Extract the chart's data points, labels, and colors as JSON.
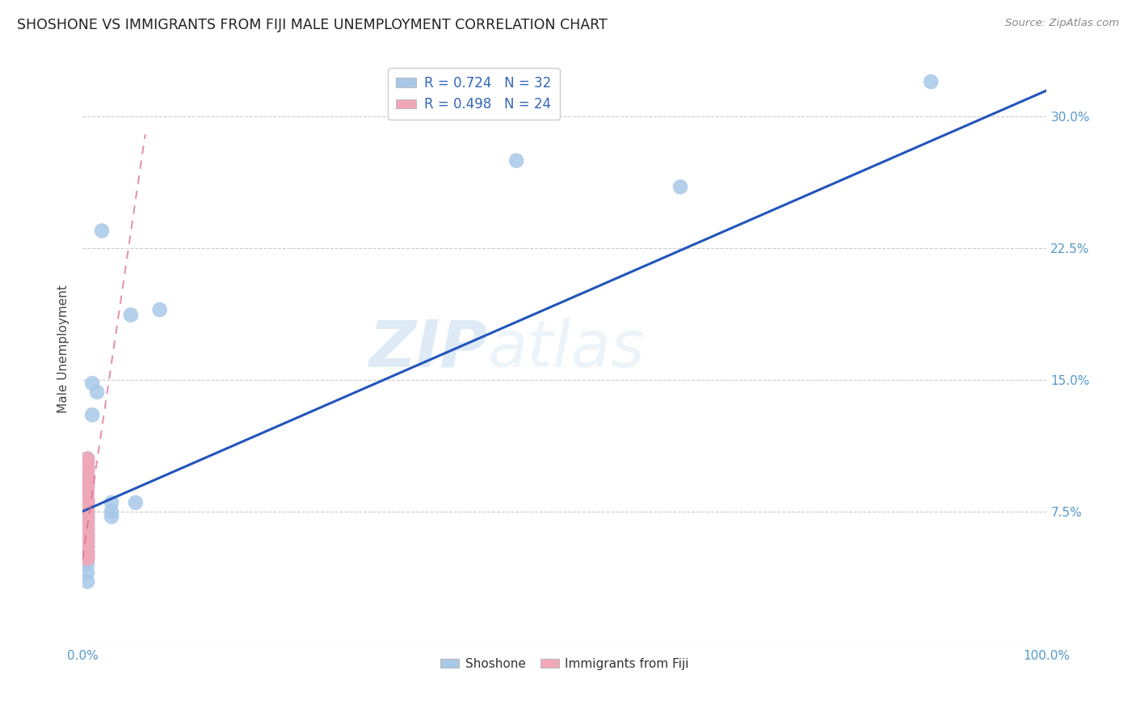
{
  "title": "SHOSHONE VS IMMIGRANTS FROM FIJI MALE UNEMPLOYMENT CORRELATION CHART",
  "source": "Source: ZipAtlas.com",
  "ylabel": "Male Unemployment",
  "y_tick_labels": [
    "7.5%",
    "15.0%",
    "22.5%",
    "30.0%"
  ],
  "xlim": [
    0.0,
    1.0
  ],
  "ylim": [
    0.0,
    0.335
  ],
  "yticks": [
    0.075,
    0.15,
    0.225,
    0.3
  ],
  "xticks": [
    0.0,
    1.0
  ],
  "x_tick_labels": [
    "0.0%",
    "100.0%"
  ],
  "legend_R1": "R = 0.724",
  "legend_N1": "N = 32",
  "legend_R2": "R = 0.498",
  "legend_N2": "N = 24",
  "color_shoshone": "#a8c8e8",
  "color_fiji": "#f0a8b8",
  "line_color_shoshone": "#2255bb",
  "line_color_fiji": "#dd7090",
  "watermark_zip": "ZIP",
  "watermark_atlas": "atlas",
  "background_color": "#ffffff",
  "shoshone_x": [
    0.005,
    0.005,
    0.005,
    0.005,
    0.005,
    0.005,
    0.005,
    0.005,
    0.005,
    0.005,
    0.005,
    0.005,
    0.005,
    0.005,
    0.005,
    0.01,
    0.01,
    0.015,
    0.02,
    0.03,
    0.03,
    0.03,
    0.05,
    0.055,
    0.08,
    0.45,
    0.62,
    0.88,
    0.005,
    0.005,
    0.005,
    0.005
  ],
  "shoshone_y": [
    0.08,
    0.08,
    0.075,
    0.072,
    0.068,
    0.065,
    0.062,
    0.058,
    0.055,
    0.052,
    0.05,
    0.048,
    0.045,
    0.04,
    0.035,
    0.148,
    0.13,
    0.143,
    0.235,
    0.08,
    0.075,
    0.072,
    0.187,
    0.08,
    0.19,
    0.275,
    0.26,
    0.32,
    0.105,
    0.1,
    0.095,
    0.09
  ],
  "fiji_x": [
    0.005,
    0.005,
    0.005,
    0.005,
    0.005,
    0.005,
    0.005,
    0.005,
    0.005,
    0.005,
    0.005,
    0.005,
    0.005,
    0.005,
    0.005,
    0.005,
    0.005,
    0.005,
    0.005,
    0.005,
    0.005,
    0.005,
    0.005,
    0.005
  ],
  "fiji_y": [
    0.105,
    0.103,
    0.1,
    0.098,
    0.095,
    0.092,
    0.09,
    0.088,
    0.085,
    0.082,
    0.08,
    0.078,
    0.075,
    0.072,
    0.07,
    0.068,
    0.065,
    0.062,
    0.06,
    0.058,
    0.055,
    0.052,
    0.05,
    0.048
  ],
  "shoshone_trend_x": [
    0.0,
    1.0
  ],
  "shoshone_trend_y": [
    0.075,
    0.315
  ],
  "fiji_trend_x": [
    0.0,
    0.065
  ],
  "fiji_trend_y": [
    0.048,
    0.29
  ]
}
